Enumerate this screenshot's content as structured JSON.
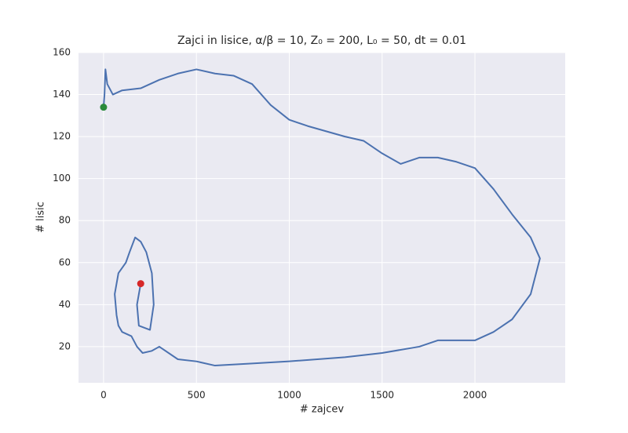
{
  "chart_data": {
    "type": "line",
    "title": "Zajci in lisice, α/β = 10, Z₀ = 200, L₀ = 50, dt = 0.01",
    "xlabel": "# zajcev",
    "ylabel": "# lisic",
    "xlim": [
      -135,
      2486
    ],
    "ylim": [
      2.8,
      160
    ],
    "xticks": [
      0,
      500,
      1000,
      1500,
      2000
    ],
    "yticks": [
      20,
      40,
      60,
      80,
      100,
      120,
      140,
      160
    ],
    "grid": true,
    "background": "#eaeaf2",
    "series": [
      {
        "color": "#4c72b0",
        "x": [
          200,
          180,
          190,
          250,
          270,
          260,
          230,
          200,
          170,
          140,
          120,
          80,
          60,
          70,
          80,
          100,
          150,
          180,
          210,
          260,
          300,
          400,
          500,
          600,
          800,
          1000,
          1300,
          1500,
          1700,
          1800,
          2000,
          2100,
          2200,
          2300,
          2350,
          2300,
          2200,
          2100,
          2000,
          1900,
          1800,
          1700,
          1600,
          1500,
          1400,
          1300,
          1100,
          1000,
          900,
          800,
          700,
          600,
          500,
          400,
          300,
          200,
          100,
          50,
          20,
          10,
          5,
          0
        ],
        "y": [
          50,
          40,
          30,
          28,
          40,
          55,
          65,
          70,
          72,
          65,
          60,
          55,
          45,
          35,
          30,
          27,
          25,
          20,
          17,
          18,
          20,
          14,
          13,
          11,
          12,
          13,
          15,
          17,
          20,
          23,
          23,
          27,
          33,
          45,
          62,
          72,
          83,
          95,
          105,
          108,
          110,
          110,
          107,
          112,
          118,
          120,
          125,
          128,
          135,
          145,
          149,
          150,
          152,
          150,
          147,
          143,
          142,
          140,
          145,
          152,
          140,
          134
        ]
      }
    ],
    "markers": [
      {
        "x": 200,
        "y": 50,
        "color": "#d62728"
      },
      {
        "x": 0,
        "y": 134,
        "color": "#2a8a3a"
      }
    ]
  }
}
